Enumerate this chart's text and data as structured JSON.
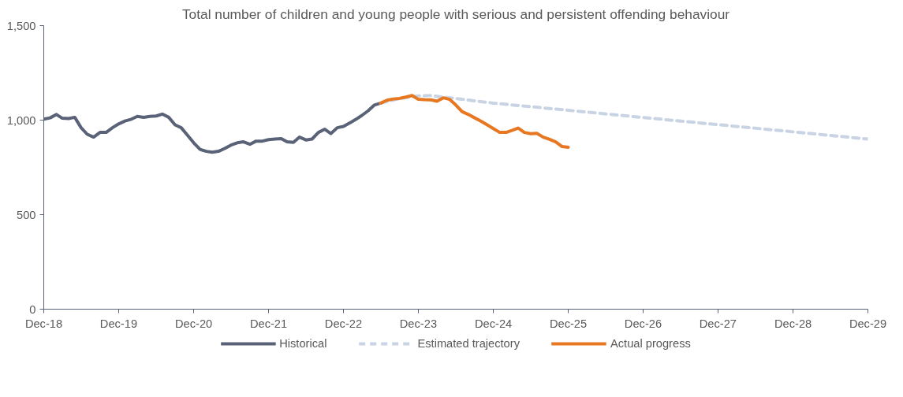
{
  "chart_data": {
    "type": "line",
    "title": "Total number of children and young people with serious and persistent offending behaviour",
    "xlim": [
      "2018-12",
      "2029-12"
    ],
    "xticks": [
      {
        "value": "2018-12",
        "label": "Dec-18"
      },
      {
        "value": "2019-12",
        "label": "Dec-19"
      },
      {
        "value": "2020-12",
        "label": "Dec-20"
      },
      {
        "value": "2021-12",
        "label": "Dec-21"
      },
      {
        "value": "2022-12",
        "label": "Dec-22"
      },
      {
        "value": "2023-12",
        "label": "Dec-23"
      },
      {
        "value": "2024-12",
        "label": "Dec-24"
      },
      {
        "value": "2025-12",
        "label": "Dec-25"
      },
      {
        "value": "2026-12",
        "label": "Dec-26"
      },
      {
        "value": "2027-12",
        "label": "Dec-27"
      },
      {
        "value": "2028-12",
        "label": "Dec-28"
      },
      {
        "value": "2029-12",
        "label": "Dec-29"
      }
    ],
    "ylim": [
      0,
      1500
    ],
    "yticks": [
      0,
      500,
      {
        "value": 1000,
        "label": "1,000"
      },
      {
        "value": 1500,
        "label": "1,500"
      }
    ],
    "grid": false,
    "legend": "bottom",
    "marker": "none",
    "series": [
      {
        "name": "Historical",
        "color": "#5a6278",
        "line_style": "solid",
        "x": [
          "2018-12",
          "2019-01",
          "2019-02",
          "2019-03",
          "2019-04",
          "2019-05",
          "2019-06",
          "2019-07",
          "2019-08",
          "2019-09",
          "2019-10",
          "2019-11",
          "2019-12",
          "2020-01",
          "2020-02",
          "2020-03",
          "2020-04",
          "2020-05",
          "2020-06",
          "2020-07",
          "2020-08",
          "2020-09",
          "2020-10",
          "2020-11",
          "2020-12",
          "2021-01",
          "2021-02",
          "2021-03",
          "2021-04",
          "2021-05",
          "2021-06",
          "2021-07",
          "2021-08",
          "2021-09",
          "2021-10",
          "2021-11",
          "2021-12",
          "2022-01",
          "2022-02",
          "2022-03",
          "2022-04",
          "2022-05",
          "2022-06",
          "2022-07",
          "2022-08",
          "2022-09",
          "2022-10",
          "2022-11",
          "2022-12",
          "2023-01",
          "2023-02",
          "2023-03",
          "2023-04",
          "2023-05",
          "2023-06"
        ],
        "values": [
          1005,
          1012,
          1030,
          1010,
          1008,
          1015,
          960,
          925,
          910,
          935,
          935,
          960,
          980,
          995,
          1005,
          1020,
          1015,
          1020,
          1022,
          1032,
          1015,
          975,
          960,
          920,
          880,
          845,
          835,
          830,
          835,
          850,
          868,
          880,
          885,
          872,
          889,
          889,
          897,
          900,
          902,
          885,
          882,
          910,
          895,
          900,
          935,
          952,
          929,
          960,
          967,
          985,
          1005,
          1025,
          1050,
          1080,
          1090
        ]
      },
      {
        "name": "Estimated trajectory",
        "color": "#c8d3e3",
        "line_style": "dashed",
        "x": [
          "2023-06",
          "2023-09",
          "2023-12",
          "2024-02",
          "2024-12",
          "2025-12",
          "2026-12",
          "2027-12",
          "2028-12",
          "2029-12"
        ],
        "values": [
          1090,
          1115,
          1128,
          1130,
          1090,
          1052,
          1014,
          976,
          938,
          900
        ]
      },
      {
        "name": "Actual progress",
        "color": "#e87722",
        "line_style": "solid",
        "x": [
          "2023-06",
          "2023-07",
          "2023-08",
          "2023-09",
          "2023-10",
          "2023-11",
          "2023-12",
          "2024-01",
          "2024-02",
          "2024-03",
          "2024-04",
          "2024-05",
          "2024-06",
          "2024-07",
          "2024-08",
          "2024-09",
          "2024-10",
          "2024-11",
          "2024-12",
          "2025-01",
          "2025-02",
          "2025-03",
          "2025-04",
          "2025-05",
          "2025-06",
          "2025-07",
          "2025-08",
          "2025-09",
          "2025-10",
          "2025-11",
          "2025-12"
        ],
        "values": [
          1090,
          1105,
          1112,
          1115,
          1122,
          1130,
          1110,
          1108,
          1107,
          1100,
          1118,
          1110,
          1080,
          1045,
          1030,
          1012,
          995,
          975,
          955,
          935,
          935,
          945,
          958,
          935,
          928,
          930,
          910,
          898,
          885,
          860,
          856
        ]
      }
    ]
  }
}
